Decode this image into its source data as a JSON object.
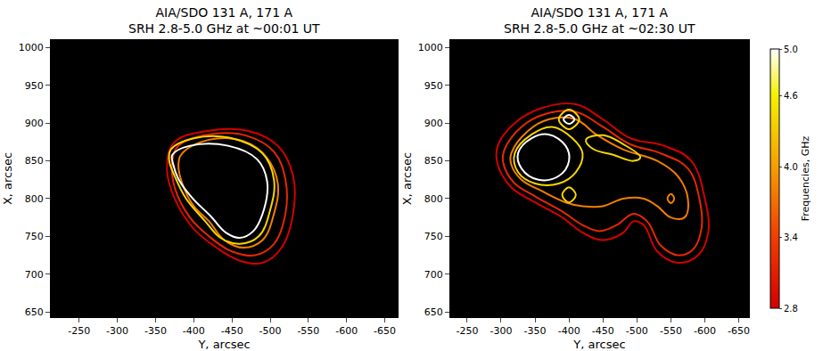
{
  "chart_data": [
    {
      "type": "contour_lines",
      "title": [
        "AIA/SDO 131 A, 171 A",
        "SRH 2.8-5.0 GHz at ~00:01 UT"
      ],
      "x_label": "Y, arcsec",
      "y_label": "X, arcsec",
      "xlim": [
        -213,
        -667
      ],
      "ylim": [
        643,
        1010
      ],
      "xticks": [
        -250,
        -300,
        -350,
        -400,
        -450,
        -500,
        -550,
        -600,
        -650
      ],
      "yticks": [
        650,
        700,
        750,
        800,
        850,
        900,
        950,
        1000
      ],
      "contours": [
        {
          "frequency": 2.8,
          "x": [
            -375,
            -420,
            -470,
            -510,
            -530,
            -530,
            -515,
            -490,
            -460,
            -430,
            -400,
            -375,
            -365
          ],
          "y": [
            875,
            890,
            890,
            870,
            830,
            780,
            735,
            715,
            718,
            735,
            760,
            800,
            840
          ]
        },
        {
          "frequency": 3.2,
          "x": [
            -380,
            -420,
            -470,
            -505,
            -520,
            -520,
            -505,
            -480,
            -450,
            -420,
            -395,
            -375,
            -372
          ],
          "y": [
            870,
            885,
            883,
            862,
            825,
            780,
            740,
            725,
            730,
            750,
            775,
            815,
            850
          ]
        },
        {
          "frequency": 3.8,
          "x": [
            -385,
            -420,
            -465,
            -495,
            -510,
            -505,
            -490,
            -465,
            -440,
            -420,
            -400,
            -385,
            -380
          ],
          "y": [
            860,
            878,
            876,
            855,
            820,
            780,
            745,
            735,
            745,
            770,
            790,
            820,
            845
          ]
        },
        {
          "frequency": 4.4,
          "x": [
            -370,
            -400,
            -450,
            -490,
            -505,
            -500,
            -485,
            -460,
            -435,
            -415,
            -390,
            -375,
            -368
          ],
          "y": [
            865,
            880,
            880,
            860,
            825,
            785,
            750,
            740,
            748,
            770,
            800,
            830,
            850
          ]
        },
        {
          "frequency": 5.0,
          "x": [
            -372,
            -395,
            -445,
            -483,
            -496,
            -492,
            -478,
            -460,
            -442,
            -422,
            -398,
            -380,
            -373
          ],
          "y": [
            858,
            870,
            870,
            852,
            823,
            786,
            757,
            748,
            755,
            777,
            801,
            826,
            846
          ]
        }
      ]
    },
    {
      "type": "contour_lines",
      "title": [
        "AIA/SDO 131 A, 171 A",
        "SRH 2.8-5.0 GHz at ~02:30 UT"
      ],
      "x_label": "Y, arcsec",
      "y_label": "X, arcsec",
      "xlim": [
        -225,
        -665
      ],
      "ylim": [
        643,
        1010
      ],
      "xticks": [
        -250,
        -300,
        -350,
        -400,
        -450,
        -500,
        -550,
        -600,
        -650
      ],
      "yticks": [
        650,
        700,
        750,
        800,
        850,
        900,
        950,
        1000
      ],
      "colorbar": {
        "label": "Frequencies, GHz",
        "range": [
          2.8,
          5.0
        ],
        "ticks": [
          2.8,
          3.4,
          {
            "value": 4,
            "label": "4.0"
          },
          4.6,
          {
            "value": 5,
            "label": "5.0"
          }
        ]
      },
      "contours": [
        {
          "frequency": 2.8,
          "x": [
            -295,
            -320,
            -360,
            -410,
            -450,
            -490,
            -540,
            -580,
            -600,
            -605,
            -590,
            -560,
            -530,
            -510,
            -495,
            -480,
            -450,
            -420,
            -390,
            -350,
            -315,
            -295
          ],
          "y": [
            870,
            900,
            920,
            925,
            905,
            880,
            870,
            850,
            800,
            755,
            725,
            715,
            730,
            765,
            770,
            755,
            745,
            755,
            775,
            795,
            815,
            845
          ]
        },
        {
          "frequency": 3.2,
          "x": [
            -305,
            -330,
            -365,
            -410,
            -450,
            -490,
            -535,
            -575,
            -592,
            -595,
            -582,
            -560,
            -535,
            -515,
            -495,
            -470,
            -445,
            -420,
            -390,
            -350,
            -318,
            -303
          ],
          "y": [
            865,
            895,
            912,
            915,
            895,
            872,
            860,
            840,
            800,
            760,
            732,
            725,
            738,
            770,
            780,
            765,
            757,
            765,
            783,
            803,
            822,
            848
          ]
        },
        {
          "frequency": 3.8,
          "x": [
            -315,
            -340,
            -370,
            -410,
            -440,
            -480,
            -530,
            -560,
            -575,
            -570,
            -550,
            -530,
            -510,
            -480,
            -450,
            -420,
            -395,
            -360,
            -330,
            -315
          ],
          "y": [
            860,
            890,
            905,
            905,
            885,
            865,
            850,
            830,
            800,
            775,
            775,
            790,
            800,
            800,
            790,
            790,
            795,
            810,
            825,
            845
          ]
        },
        {
          "frequency": 3.8,
          "x": [
            -545,
            -550,
            -555,
            -550
          ],
          "y": [
            800,
            806,
            800,
            794
          ]
        },
        {
          "frequency": 4.4,
          "x": [
            -320,
            -345,
            -375,
            -405,
            -420,
            -410,
            -385,
            -350,
            -325
          ],
          "y": [
            860,
            885,
            895,
            880,
            860,
            835,
            820,
            820,
            835
          ]
        },
        {
          "frequency": 4.4,
          "x": [
            -425,
            -450,
            -480,
            -505,
            -495,
            -465,
            -435
          ],
          "y": [
            878,
            884,
            872,
            855,
            850,
            858,
            866
          ]
        },
        {
          "frequency": 4.4,
          "x": [
            -390,
            -400,
            -410,
            -400
          ],
          "y": [
            805,
            815,
            805,
            795
          ]
        },
        {
          "frequency": 4.4,
          "x": [
            -385,
            -400,
            -415,
            -400
          ],
          "y": [
            905,
            918,
            905,
            892
          ]
        },
        {
          "frequency": 5.0,
          "x": [
            -392,
            -400,
            -408,
            -400
          ],
          "y": [
            905,
            911,
            905,
            899
          ]
        },
        {
          "frequency": 5.0,
          "x": [
            -325,
            -345,
            -370,
            -395,
            -400,
            -385,
            -355,
            -330
          ],
          "y": [
            860,
            880,
            885,
            870,
            850,
            830,
            825,
            840
          ]
        }
      ]
    }
  ]
}
